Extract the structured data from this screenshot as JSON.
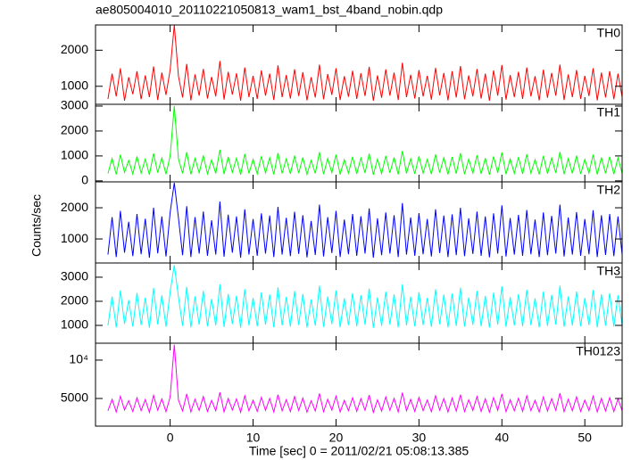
{
  "chart_data": {
    "type": "line",
    "title": "ae805004010_20110221050813_wam1_bst_4band_nobin.qdp",
    "xlabel": "Time [sec] 0 = 2011/02/21 05:08:13.385",
    "ylabel": "Counts/sec",
    "xlim": [
      -9,
      54.5
    ],
    "xticks": [
      0,
      10,
      20,
      30,
      40,
      50
    ],
    "x": [
      -7.5,
      -7,
      -6.5,
      -6,
      -5.5,
      -5,
      -4.5,
      -4,
      -3.5,
      -3,
      -2.5,
      -2,
      -1.5,
      -1,
      -0.5,
      0,
      0.5,
      1,
      1.5,
      2,
      2.5,
      3,
      3.5,
      4,
      4.5,
      5,
      5.5,
      6,
      6.5,
      7,
      7.5,
      8,
      8.5,
      9,
      9.5,
      10,
      10.5,
      11,
      11.5,
      12,
      12.5,
      13,
      13.5,
      14,
      14.5,
      15,
      15.5,
      16,
      16.5,
      17,
      17.5,
      18,
      18.5,
      19,
      19.5,
      20,
      20.5,
      21,
      21.5,
      22,
      22.5,
      23,
      23.5,
      24,
      24.5,
      25,
      25.5,
      26,
      26.5,
      27,
      27.5,
      28,
      28.5,
      29,
      29.5,
      30,
      30.5,
      31,
      31.5,
      32,
      32.5,
      33,
      33.5,
      34,
      34.5,
      35,
      35.5,
      36,
      36.5,
      37,
      37.5,
      38,
      38.5,
      39,
      39.5,
      40,
      40.5,
      41,
      41.5,
      42,
      42.5,
      43,
      43.5,
      44,
      44.5,
      45,
      45.5,
      46,
      46.5,
      47,
      47.5,
      48,
      48.5,
      49,
      49.5,
      50,
      50.5,
      51,
      51.5,
      52,
      52.5,
      53,
      53.5,
      54,
      54.5
    ],
    "panels": [
      {
        "name": "TH0",
        "color": "#ff0000",
        "ylim": [
          500,
          2700
        ],
        "yticks": [
          1000,
          2000
        ],
        "values": [
          650,
          1350,
          720,
          1500,
          600,
          1250,
          780,
          1420,
          640,
          1300,
          700,
          1550,
          620,
          1380,
          760,
          1450,
          2700,
          1280,
          690,
          1620,
          610,
          1330,
          740,
          1480,
          660,
          1260,
          720,
          1700,
          630,
          1400,
          770,
          1360,
          600,
          1520,
          700,
          1290,
          650,
          1440,
          740,
          1350,
          620,
          1580,
          700,
          1310,
          660,
          1470,
          730,
          1390,
          610,
          1250,
          690,
          1600,
          640,
          1340,
          760,
          1500,
          620,
          1280,
          710,
          1430,
          650,
          1360,
          730,
          1540,
          600,
          1300,
          680,
          1470,
          740,
          1380,
          620,
          1650,
          700,
          1320,
          660,
          1450,
          720,
          1290,
          630,
          1510,
          750,
          1370,
          610,
          1420,
          690,
          1560,
          640,
          1300,
          720,
          1480,
          660,
          1350,
          600,
          1440,
          740,
          1590,
          630,
          1310,
          700,
          1400,
          650,
          1520,
          720,
          1280,
          610,
          1460,
          680,
          1370,
          740,
          1600,
          620,
          1330,
          700,
          1450,
          650,
          1290,
          730,
          1500,
          610,
          1380,
          690,
          1420,
          640,
          1350,
          700
        ]
      },
      {
        "name": "TH1",
        "color": "#00ff00",
        "ylim": [
          -40,
          3070
        ],
        "yticks": [
          0,
          1000,
          2000,
          3000
        ],
        "values": [
          300,
          900,
          260,
          1050,
          340,
          820,
          280,
          980,
          310,
          870,
          250,
          1100,
          330,
          920,
          270,
          1000,
          3000,
          880,
          300,
          1150,
          260,
          900,
          320,
          1020,
          280,
          840,
          300,
          1250,
          270,
          960,
          340,
          910,
          250,
          1080,
          300,
          860,
          280,
          990,
          320,
          930,
          260,
          1120,
          300,
          880,
          280,
          1010,
          310,
          940,
          260,
          820,
          300,
          1150,
          270,
          900,
          330,
          1050,
          260,
          850,
          310,
          970,
          280,
          920,
          320,
          1090,
          250,
          870,
          290,
          1000,
          320,
          940,
          260,
          1200,
          300,
          890,
          280,
          990,
          310,
          860,
          270,
          1060,
          330,
          930,
          260,
          960,
          290,
          1110,
          270,
          870,
          310,
          1030,
          280,
          910,
          250,
          980,
          320,
          1140,
          270,
          880,
          300,
          950,
          280,
          1070,
          310,
          850,
          260,
          1000,
          290,
          920,
          320,
          1160,
          270,
          890,
          300,
          1010,
          280,
          860,
          310,
          1050,
          260,
          940,
          300,
          970,
          270,
          920,
          300
        ]
      },
      {
        "name": "TH2",
        "color": "#0000ff",
        "ylim": [
          230,
          2830
        ],
        "yticks": [
          1000,
          2000
        ],
        "values": [
          500,
          1700,
          420,
          1900,
          560,
          1550,
          450,
          1800,
          510,
          1650,
          400,
          2000,
          540,
          1720,
          440,
          1850,
          2800,
          1680,
          480,
          2050,
          420,
          1700,
          530,
          1880,
          460,
          1600,
          500,
          2200,
          430,
          1780,
          560,
          1720,
          400,
          1950,
          500,
          1640,
          460,
          1820,
          530,
          1750,
          420,
          2030,
          500,
          1680,
          450,
          1870,
          520,
          1760,
          410,
          1580,
          490,
          2100,
          440,
          1700,
          550,
          1900,
          420,
          1620,
          510,
          1800,
          460,
          1730,
          530,
          1980,
          400,
          1660,
          480,
          1850,
          530,
          1760,
          420,
          2150,
          500,
          1690,
          460,
          1830,
          510,
          1640,
          440,
          1950,
          550,
          1750,
          420,
          1790,
          480,
          2000,
          450,
          1660,
          520,
          1880,
          460,
          1720,
          410,
          1820,
          530,
          2080,
          440,
          1670,
          500,
          1770,
          460,
          1930,
          510,
          1620,
          420,
          1850,
          480,
          1740,
          530,
          2100,
          440,
          1690,
          500,
          1860,
          460,
          1640,
          510,
          1920,
          420,
          1760,
          490,
          1800,
          450,
          1720,
          500
        ]
      },
      {
        "name": "TH3",
        "color": "#00ffff",
        "ylim": [
          260,
          3590
        ],
        "yticks": [
          1000,
          2000,
          3000
        ],
        "values": [
          1000,
          2200,
          920,
          2450,
          1060,
          2050,
          950,
          2350,
          1010,
          2150,
          900,
          2550,
          1040,
          2250,
          940,
          2400,
          3500,
          2180,
          980,
          2600,
          920,
          2200,
          1030,
          2430,
          960,
          2100,
          1000,
          2700,
          930,
          2300,
          1060,
          2230,
          900,
          2500,
          1000,
          2140,
          960,
          2370,
          1030,
          2280,
          920,
          2580,
          1000,
          2180,
          950,
          2420,
          1020,
          2300,
          910,
          2080,
          990,
          2650,
          940,
          2200,
          1050,
          2450,
          920,
          2120,
          1010,
          2340,
          960,
          2250,
          1030,
          2530,
          900,
          2160,
          980,
          2400,
          1030,
          2290,
          920,
          2700,
          1000,
          2190,
          960,
          2380,
          1010,
          2140,
          940,
          2500,
          1050,
          2280,
          920,
          2320,
          980,
          2560,
          950,
          2160,
          1020,
          2430,
          960,
          2230,
          910,
          2360,
          1030,
          2620,
          940,
          2170,
          1000,
          2300,
          960,
          2480,
          1010,
          2120,
          920,
          2400,
          980,
          2270,
          1030,
          2650,
          940,
          2200,
          1000,
          2410,
          960,
          2140,
          1010,
          2470,
          920,
          2290,
          990,
          2340,
          950,
          2250,
          1000
        ]
      },
      {
        "name": "TH0123",
        "color": "#ff00ff",
        "ylim": [
          1400,
          12200
        ],
        "yticks": [
          5000,
          {
            "value": 10000,
            "label": "10⁴"
          }
        ],
        "values": [
          3400,
          4900,
          3250,
          5300,
          3500,
          4700,
          3300,
          5100,
          3420,
          4850,
          3200,
          5400,
          3480,
          4950,
          3280,
          5200,
          12000,
          4800,
          3380,
          5600,
          3250,
          4900,
          3460,
          5250,
          3320,
          4750,
          3400,
          5800,
          3260,
          5000,
          3500,
          4950,
          3200,
          5350,
          3400,
          4780,
          3320,
          5150,
          3460,
          5000,
          3250,
          5500,
          3400,
          4850,
          3300,
          5250,
          3440,
          5050,
          3220,
          4700,
          3380,
          5650,
          3280,
          4900,
          3480,
          5300,
          3240,
          4760,
          3420,
          5100,
          3320,
          4980,
          3460,
          5450,
          3200,
          4820,
          3360,
          5200,
          3460,
          5020,
          3250,
          5750,
          3400,
          4880,
          3320,
          5150,
          3420,
          4790,
          3280,
          5350,
          3480,
          4990,
          3240,
          5060,
          3360,
          5500,
          3300,
          4830,
          3440,
          5250,
          3320,
          4960,
          3220,
          5120,
          3460,
          5600,
          3280,
          4840,
          3400,
          5030,
          3320,
          5350,
          3420,
          4760,
          3250,
          5200,
          3360,
          4980,
          3460,
          5700,
          3280,
          4900,
          3400,
          5220,
          3320,
          4790,
          3420,
          5300,
          3250,
          5010,
          3380,
          5100,
          3300,
          4950,
          3400
        ]
      }
    ]
  }
}
